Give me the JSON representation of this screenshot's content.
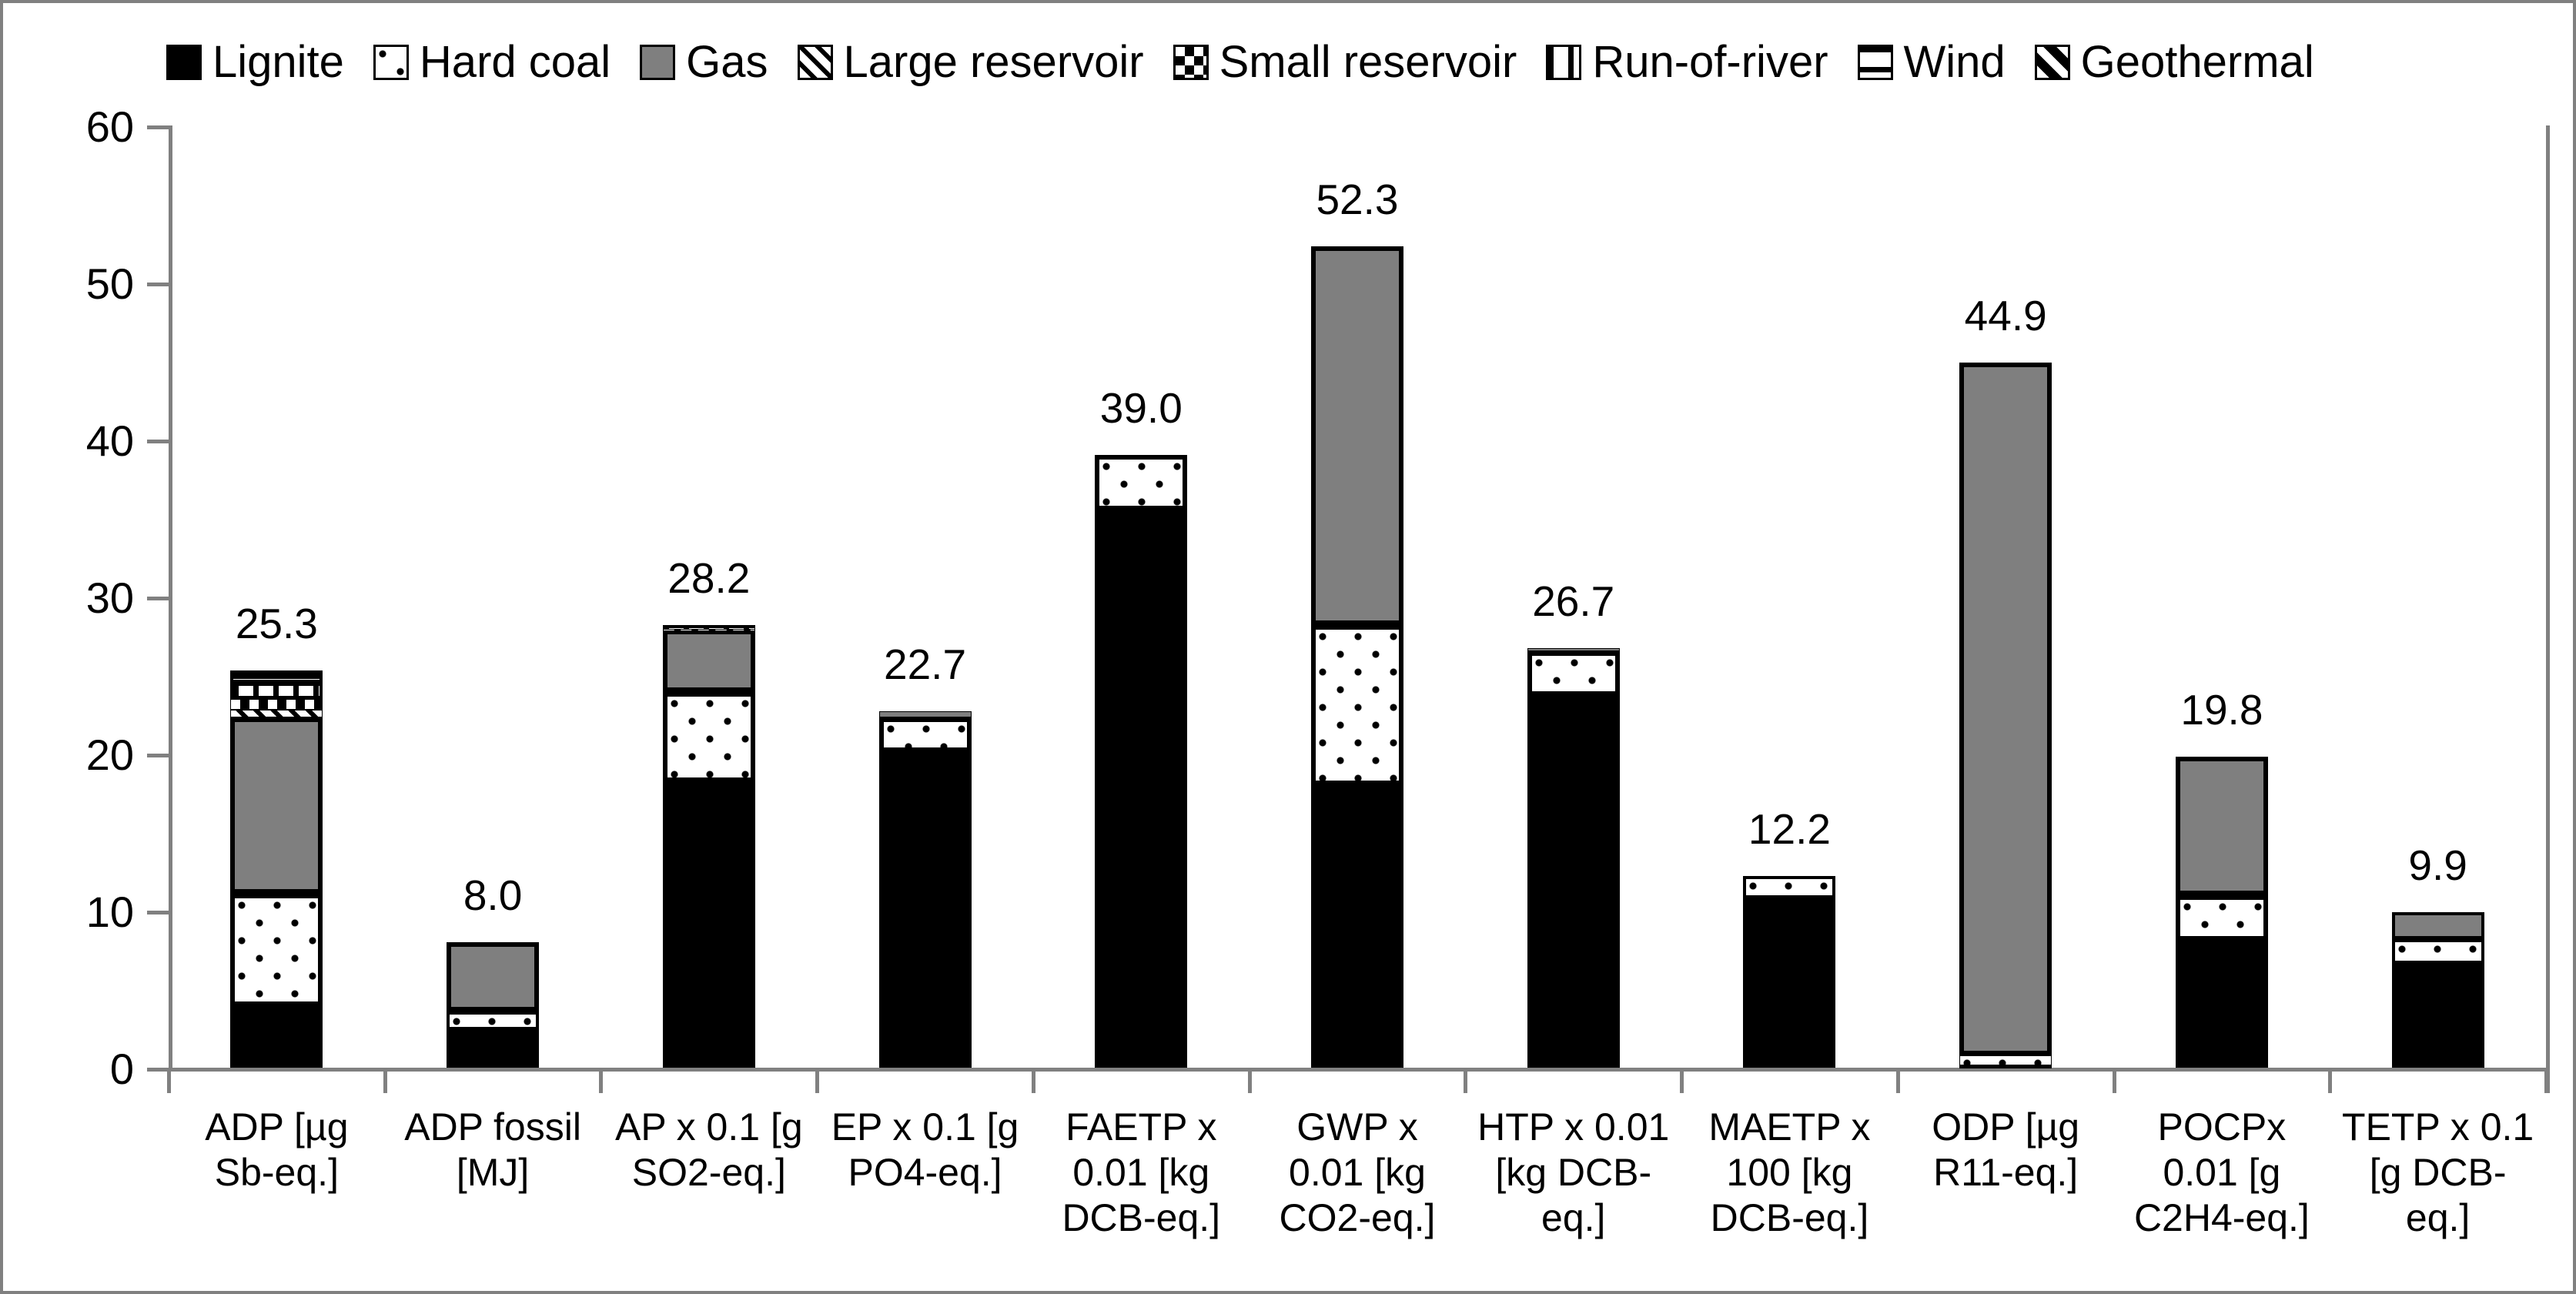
{
  "chart_data": {
    "type": "bar",
    "subtype": "stacked-vertical",
    "title": "",
    "xlabel": "",
    "ylabel": "",
    "ylim": [
      0,
      60
    ],
    "yticks": [
      0,
      10,
      20,
      30,
      40,
      50,
      60
    ],
    "grid": false,
    "legend_position": "top",
    "axis_color": "#808080",
    "categories": [
      "ADP [µg Sb-eq.]",
      "ADP fossil [MJ]",
      "AP x 0.1 [g SO2-eq.]",
      "EP x 0.1 [g PO4-eq.]",
      "FAETP x 0.01 [kg DCB-eq.]",
      "GWP x 0.01 [kg CO2-eq.]",
      "HTP x 0.01 [kg DCB-eq.]",
      "MAETP x 100 [kg DCB-eq.]",
      "ODP [µg R11-eq.]",
      "POCPx 0.01 [g C2H4-eq.]",
      "TETP x 0.1 [g DCB-eq.]"
    ],
    "total_labels": [
      "25.3",
      "8.0",
      "28.2",
      "22.7",
      "39.0",
      "52.3",
      "26.7",
      "12.2",
      "44.9",
      "19.8",
      "9.9"
    ],
    "series": [
      {
        "name": "Lignite",
        "pattern": "solid-black",
        "color": "#000000",
        "values": [
          3.9,
          2.4,
          18.2,
          20.1,
          35.5,
          18.0,
          23.7,
          10.8,
          0.15,
          8.1,
          6.6
        ]
      },
      {
        "name": "Hard coal",
        "pattern": "dots",
        "color": "#ffffff",
        "values": [
          7.2,
          1.2,
          5.7,
          2.2,
          3.5,
          10.2,
          2.8,
          1.4,
          0.65,
          2.9,
          1.6
        ]
      },
      {
        "name": "Gas",
        "pattern": "solid-gray",
        "color": "#7f7f7f",
        "values": [
          11.2,
          4.4,
          4.0,
          0.4,
          0.0,
          24.1,
          0.2,
          0.0,
          44.1,
          8.8,
          1.7
        ]
      },
      {
        "name": "Large reservoir",
        "pattern": "diag-thin",
        "color": "#ffffff",
        "values": [
          0.5,
          0.0,
          0.1,
          0.0,
          0.0,
          0.0,
          0.0,
          0.0,
          0.0,
          0.0,
          0.0
        ]
      },
      {
        "name": "Small reservoir",
        "pattern": "checker",
        "color": "#ffffff",
        "values": [
          0.7,
          0.0,
          0.0,
          0.0,
          0.0,
          0.0,
          0.0,
          0.0,
          0.0,
          0.0,
          0.0
        ]
      },
      {
        "name": "Run-of-river",
        "pattern": "vert-lines",
        "color": "#ffffff",
        "values": [
          1.0,
          0.0,
          0.1,
          0.0,
          0.0,
          0.0,
          0.0,
          0.0,
          0.0,
          0.0,
          0.0
        ]
      },
      {
        "name": "Wind",
        "pattern": "horiz-lines",
        "color": "#ffffff",
        "values": [
          0.8,
          0.0,
          0.1,
          0.0,
          0.0,
          0.0,
          0.0,
          0.0,
          0.0,
          0.0,
          0.0
        ]
      },
      {
        "name": "Geothermal",
        "pattern": "diag-thick",
        "color": "#ffffff",
        "values": [
          0.0,
          0.0,
          0.0,
          0.0,
          0.0,
          0.0,
          0.0,
          0.0,
          0.0,
          0.0,
          0.0
        ]
      }
    ]
  }
}
